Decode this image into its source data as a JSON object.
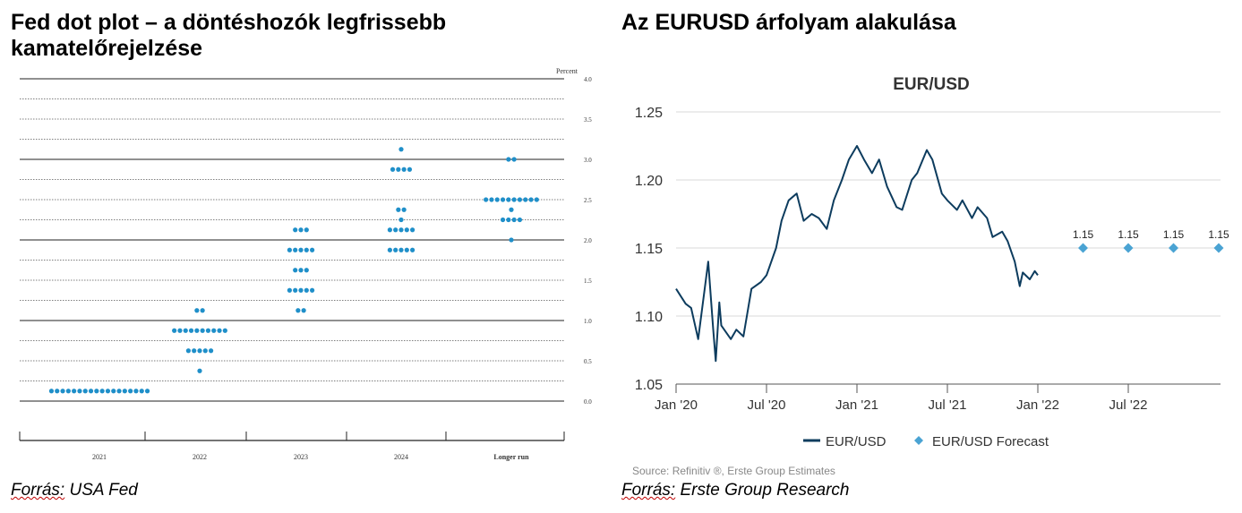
{
  "left_panel": {
    "title": "Fed dot plot – a döntéshozók legfrissebb kamatelőrejelzése",
    "source_word": "Forrás:",
    "source_name": "USA Fed"
  },
  "right_panel": {
    "title": "Az EURUSD árfolyam alakulása",
    "source_word": "Forrás:",
    "source_name": "Erste Group Research"
  },
  "chart_data": [
    {
      "type": "scatter",
      "unit_label": "Percent",
      "ylim": [
        0,
        4.0
      ],
      "y_ticks": [
        "4.0",
        "3.5",
        "3.0",
        "2.5",
        "2.0",
        "1.5",
        "1.0",
        "0.5",
        "0.0"
      ],
      "categories": [
        "2021",
        "2022",
        "2023",
        "2024",
        "Longer run"
      ],
      "dots": [
        {
          "category": "2021",
          "levels": [
            {
              "y": 0.125,
              "count": 18
            }
          ]
        },
        {
          "category": "2022",
          "levels": [
            {
              "y": 1.125,
              "count": 2
            },
            {
              "y": 0.875,
              "count": 10
            },
            {
              "y": 0.625,
              "count": 5
            },
            {
              "y": 0.375,
              "count": 1
            }
          ]
        },
        {
          "category": "2023",
          "levels": [
            {
              "y": 2.125,
              "count": 3
            },
            {
              "y": 1.875,
              "count": 5
            },
            {
              "y": 1.625,
              "count": 3
            },
            {
              "y": 1.375,
              "count": 5
            },
            {
              "y": 1.125,
              "count": 2
            }
          ]
        },
        {
          "category": "2024",
          "levels": [
            {
              "y": 3.125,
              "count": 1
            },
            {
              "y": 2.875,
              "count": 4
            },
            {
              "y": 2.375,
              "count": 2
            },
            {
              "y": 2.25,
              "count": 1
            },
            {
              "y": 2.125,
              "count": 5
            },
            {
              "y": 1.875,
              "count": 5
            }
          ]
        },
        {
          "category": "Longer run",
          "levels": [
            {
              "y": 3.0,
              "count": 2
            },
            {
              "y": 2.5,
              "count": 10
            },
            {
              "y": 2.375,
              "count": 1
            },
            {
              "y": 2.25,
              "count": 4
            },
            {
              "y": 2.0,
              "count": 1
            }
          ]
        }
      ],
      "dot_color": "#1f8fc9"
    },
    {
      "type": "line",
      "title": "EUR/USD",
      "ylim": [
        1.05,
        1.25
      ],
      "y_ticks": [
        "1.25",
        "1.20",
        "1.15",
        "1.10",
        "1.05"
      ],
      "x_ticks": [
        {
          "label": "Jan '20",
          "date": "2020-01"
        },
        {
          "label": "Jul '20",
          "date": "2020-07"
        },
        {
          "label": "Jan '21",
          "date": "2021-01"
        },
        {
          "label": "Jul '21",
          "date": "2021-07"
        },
        {
          "label": "Jan '22",
          "date": "2022-01"
        },
        {
          "label": "Jul '22",
          "date": "2022-07"
        }
      ],
      "series": [
        {
          "name": "EUR/USD",
          "color": "#0d3c5e",
          "points": [
            [
              "2020-01",
              1.12
            ],
            [
              "2020-01-20",
              1.109
            ],
            [
              "2020-02",
              1.106
            ],
            [
              "2020-02-15",
              1.083
            ],
            [
              "2020-03-05",
              1.14
            ],
            [
              "2020-03-15",
              1.09
            ],
            [
              "2020-03-20",
              1.067
            ],
            [
              "2020-03-27",
              1.11
            ],
            [
              "2020-04",
              1.093
            ],
            [
              "2020-04-20",
              1.083
            ],
            [
              "2020-05",
              1.09
            ],
            [
              "2020-05-15",
              1.085
            ],
            [
              "2020-06",
              1.12
            ],
            [
              "2020-06-20",
              1.125
            ],
            [
              "2020-07",
              1.13
            ],
            [
              "2020-07-20",
              1.15
            ],
            [
              "2020-08",
              1.17
            ],
            [
              "2020-08-15",
              1.185
            ],
            [
              "2020-09",
              1.19
            ],
            [
              "2020-09-15",
              1.17
            ],
            [
              "2020-10",
              1.175
            ],
            [
              "2020-10-15",
              1.172
            ],
            [
              "2020-11",
              1.164
            ],
            [
              "2020-11-15",
              1.185
            ],
            [
              "2020-12",
              1.2
            ],
            [
              "2020-12-15",
              1.215
            ],
            [
              "2021-01",
              1.225
            ],
            [
              "2021-01-15",
              1.215
            ],
            [
              "2021-02",
              1.205
            ],
            [
              "2021-02-15",
              1.215
            ],
            [
              "2021-03",
              1.195
            ],
            [
              "2021-03-20",
              1.18
            ],
            [
              "2021-04",
              1.178
            ],
            [
              "2021-04-20",
              1.2
            ],
            [
              "2021-05",
              1.205
            ],
            [
              "2021-05-20",
              1.222
            ],
            [
              "2021-06",
              1.215
            ],
            [
              "2021-06-20",
              1.19
            ],
            [
              "2021-07",
              1.185
            ],
            [
              "2021-07-20",
              1.178
            ],
            [
              "2021-08",
              1.185
            ],
            [
              "2021-08-20",
              1.172
            ],
            [
              "2021-09",
              1.18
            ],
            [
              "2021-09-20",
              1.172
            ],
            [
              "2021-10",
              1.158
            ],
            [
              "2021-10-20",
              1.162
            ],
            [
              "2021-11",
              1.155
            ],
            [
              "2021-11-15",
              1.14
            ],
            [
              "2021-11-25",
              1.122
            ],
            [
              "2021-12",
              1.132
            ],
            [
              "2021-12-15",
              1.127
            ],
            [
              "2021-12-25",
              1.133
            ],
            [
              "2022-01",
              1.13
            ]
          ]
        },
        {
          "name": "EUR/USD Forecast",
          "color": "#4aa3d3",
          "points": [
            [
              "2022-04",
              1.15
            ],
            [
              "2022-07",
              1.15
            ],
            [
              "2022-10",
              1.15
            ],
            [
              "2023-01",
              1.15
            ]
          ],
          "data_labels": [
            "1.15",
            "1.15",
            "1.15",
            "1.15"
          ]
        }
      ],
      "legend": {
        "position": "bottom",
        "items": [
          "EUR/USD",
          "EUR/USD Forecast"
        ]
      },
      "footnote": "Source: Refinitiv ®, Erste Group Estimates"
    }
  ]
}
